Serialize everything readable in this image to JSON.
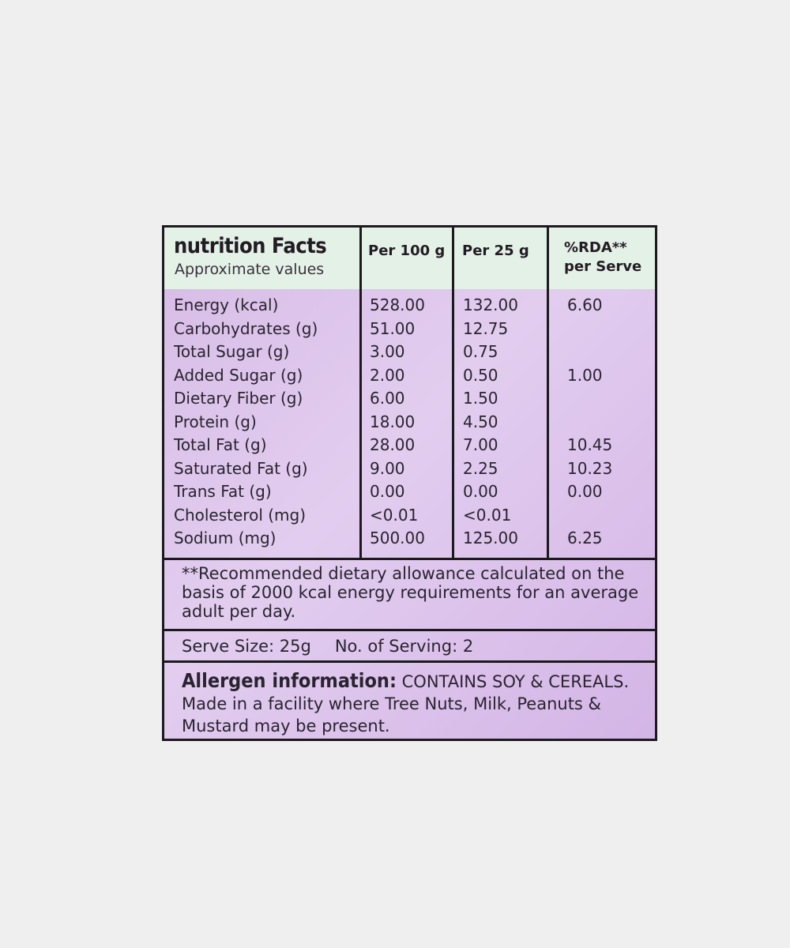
{
  "header": {
    "title": "nutrition Facts",
    "subtitle": "Approximate values",
    "col_per100": "Per 100 g",
    "col_per25": "Per 25 g",
    "col_rda_1": "%RDA**",
    "col_rda_2": "per Serve"
  },
  "rows": [
    {
      "name": "Energy (kcal)",
      "per100": "528.00",
      "per25": "132.00",
      "rda": "6.60"
    },
    {
      "name": "Carbohydrates (g)",
      "per100": "51.00",
      "per25": "12.75",
      "rda": ""
    },
    {
      "name": "Total Sugar (g)",
      "per100": "3.00",
      "per25": "0.75",
      "rda": ""
    },
    {
      "name": "Added Sugar (g)",
      "per100": "2.00",
      "per25": "0.50",
      "rda": "1.00"
    },
    {
      "name": "Dietary Fiber (g)",
      "per100": "6.00",
      "per25": "1.50",
      "rda": ""
    },
    {
      "name": "Protein (g)",
      "per100": "18.00",
      "per25": "4.50",
      "rda": ""
    },
    {
      "name": "Total Fat (g)",
      "per100": "28.00",
      "per25": "7.00",
      "rda": "10.45"
    },
    {
      "name": "Saturated Fat (g)",
      "per100": "9.00",
      "per25": "2.25",
      "rda": "10.23"
    },
    {
      "name": "Trans Fat (g)",
      "per100": "0.00",
      "per25": "0.00",
      "rda": "0.00"
    },
    {
      "name": "Cholesterol (mg)",
      "per100": "<0.01",
      "per25": "<0.01",
      "rda": ""
    },
    {
      "name": "Sodium (mg)",
      "per100": "500.00",
      "per25": "125.00",
      "rda": "6.25"
    }
  ],
  "footnote": "**Recommended dietary allowance calculated on the basis of 2000 kcal energy requirements for an average adult per day.",
  "serving": {
    "size": "Serve Size: 25g",
    "count": "No. of Serving: 2"
  },
  "allergen": {
    "label": "Allergen information:",
    "text": " CONTAINS SOY & CEREALS. Made in a facility where Tree Nuts, Milk, Peanuts & Mustard may be present."
  },
  "colors": {
    "header_bg": "#e4f1e6",
    "body_bg": "#d7bce6",
    "border": "#1c1a1e"
  }
}
